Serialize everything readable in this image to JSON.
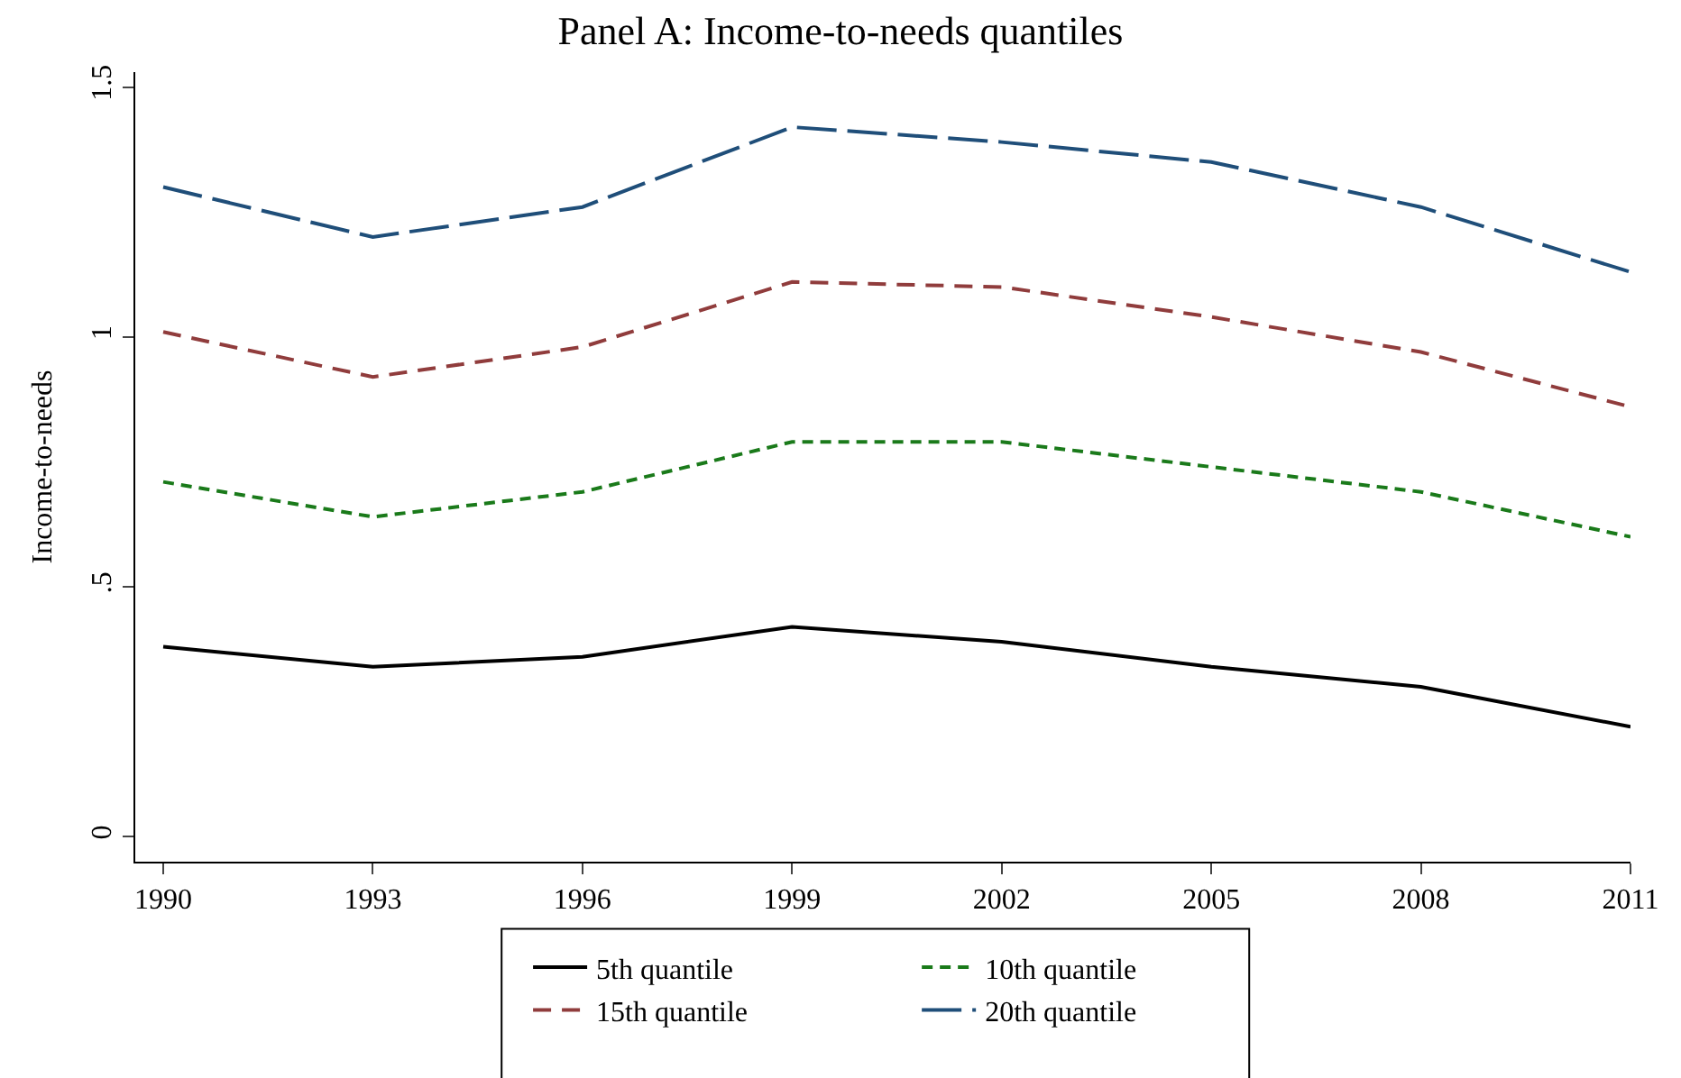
{
  "chart_data": {
    "type": "line",
    "title": "Panel A: Income-to-needs quantiles",
    "ylabel": "Income-to-needs",
    "x": [
      1990,
      1993,
      1996,
      1999,
      2002,
      2005,
      2008,
      2011
    ],
    "xlim": [
      1989.6,
      2011
    ],
    "xticks": [
      1990,
      1993,
      1996,
      1999,
      2002,
      2005,
      2008,
      2011
    ],
    "ylim": [
      -0.05,
      1.53
    ],
    "yticks": [
      {
        "value": 0,
        "label": "0"
      },
      {
        "value": 0.5,
        "label": ".5"
      },
      {
        "value": 1,
        "label": "1"
      },
      {
        "value": 1.5,
        "label": "1.5"
      }
    ],
    "grid": false,
    "legend": "bottom",
    "marker": "none",
    "series": [
      {
        "name": "5th quantile",
        "color": "#000000",
        "line_style": "solid",
        "values": [
          0.38,
          0.34,
          0.36,
          0.42,
          0.39,
          0.34,
          0.3,
          0.22
        ]
      },
      {
        "name": "10th quantile",
        "color": "#1a7a1a",
        "line_style": "dashed",
        "values": [
          0.71,
          0.64,
          0.69,
          0.79,
          0.79,
          0.74,
          0.69,
          0.6
        ]
      },
      {
        "name": "15th quantile",
        "color": "#903c3c",
        "line_style": "dashed",
        "values": [
          1.01,
          0.92,
          0.98,
          1.11,
          1.1,
          1.04,
          0.97,
          0.86
        ]
      },
      {
        "name": "20th quantile",
        "color": "#1f4e79",
        "line_style": "dashed",
        "values": [
          1.3,
          1.2,
          1.26,
          1.42,
          1.39,
          1.35,
          1.26,
          1.13
        ]
      }
    ]
  }
}
